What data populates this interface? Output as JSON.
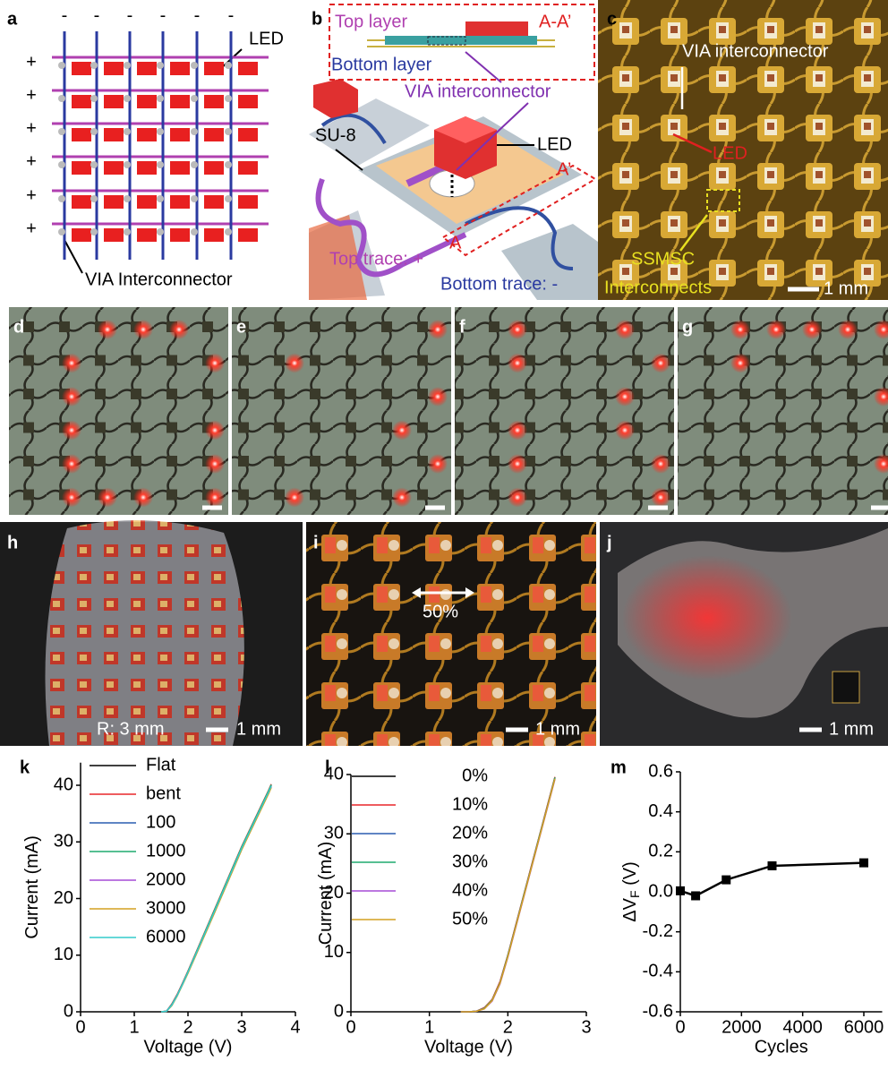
{
  "a": {
    "label": "a",
    "minus": [
      "-",
      "-",
      "-",
      "-",
      "-",
      "-"
    ],
    "plus": [
      "+",
      "+",
      "+",
      "+",
      "+",
      "+"
    ],
    "led": "LED",
    "via": "VIA Interconnector"
  },
  "b": {
    "label": "b",
    "top_layer": "Top layer",
    "section": "A-A’",
    "bottom_layer": "Bottom layer",
    "via": "VIA interconnector",
    "su8": "SU-8",
    "led": "LED",
    "a_prime": "A’",
    "a": "A",
    "top_trace": "Top trace: +",
    "bottom_trace": "Bottom trace: -"
  },
  "c": {
    "label": "c",
    "via": "VIA interconnector",
    "led": "LED",
    "ssmsc": "SSMSC",
    "interconnects": "Interconnects",
    "scale": "1 mm"
  },
  "d": {
    "label": "d"
  },
  "e": {
    "label": "e"
  },
  "f": {
    "label": "f"
  },
  "g": {
    "label": "g"
  },
  "h": {
    "label": "h",
    "radius": "R: 3 mm",
    "scale": "1 mm"
  },
  "i": {
    "label": "i",
    "strain": "50%",
    "scale": "1 mm"
  },
  "j": {
    "label": "j",
    "scale": "1 mm"
  },
  "chart_data": [
    {
      "type": "line",
      "panel_label": "k",
      "xlabel": "Voltage (V)",
      "ylabel": "Current (mA)",
      "x": [
        1.5,
        1.6,
        1.7,
        1.8,
        1.9,
        2.0,
        2.5,
        3.0,
        3.5,
        3.55
      ],
      "series": [
        {
          "name": "Flat",
          "color": "#000000",
          "values": [
            0,
            0.1,
            1.3,
            3.0,
            5.0,
            7.1,
            18.0,
            29.0,
            38.9,
            40.0
          ]
        },
        {
          "name": "bent",
          "color": "#e8262a",
          "values": [
            0,
            0.1,
            1.4,
            3.1,
            5.1,
            7.2,
            18.2,
            29.2,
            39.1,
            40.2
          ]
        },
        {
          "name": "100",
          "color": "#2a5db0",
          "values": [
            0,
            0.1,
            1.2,
            2.9,
            4.9,
            7.0,
            17.8,
            28.8,
            38.7,
            39.8
          ]
        },
        {
          "name": "1000",
          "color": "#1eaa6e",
          "values": [
            0,
            0.1,
            1.3,
            3.0,
            5.0,
            7.1,
            18.1,
            29.1,
            39.0,
            40.1
          ]
        },
        {
          "name": "2000",
          "color": "#a64bd6",
          "values": [
            0,
            0.1,
            1.2,
            2.9,
            4.9,
            6.9,
            17.7,
            28.7,
            38.6,
            39.7
          ]
        },
        {
          "name": "3000",
          "color": "#d4a020",
          "values": [
            0,
            0.1,
            1.1,
            2.8,
            4.8,
            6.8,
            17.6,
            28.6,
            38.5,
            39.6
          ]
        },
        {
          "name": "6000",
          "color": "#33cccc",
          "values": [
            0,
            0.1,
            1.2,
            2.9,
            4.9,
            7.0,
            17.9,
            28.9,
            38.8,
            39.9
          ]
        }
      ],
      "xlim": [
        0,
        4
      ],
      "xticks": [
        0,
        1,
        2,
        3,
        4
      ],
      "ylim": [
        0,
        44
      ],
      "yticks": [
        0,
        10,
        20,
        30,
        40
      ],
      "legend": "upper-left"
    },
    {
      "type": "line",
      "panel_label": "l",
      "xlabel": "Voltage (V)",
      "ylabel": "Current (mA)",
      "x": [
        1.4,
        1.5,
        1.6,
        1.7,
        1.8,
        1.9,
        2.0,
        2.1,
        2.2,
        2.3,
        2.4,
        2.5,
        2.6
      ],
      "series": [
        {
          "name": "0%",
          "color": "#000000",
          "values": [
            0,
            0,
            0.1,
            0.6,
            2.0,
            5.0,
            9.5,
            14.5,
            19.5,
            24.5,
            29.5,
            34.5,
            39.5
          ]
        },
        {
          "name": "10%",
          "color": "#e8262a",
          "values": [
            0,
            0,
            0.1,
            0.7,
            2.1,
            5.1,
            9.6,
            14.6,
            19.6,
            24.6,
            29.6,
            34.6,
            39.6
          ]
        },
        {
          "name": "20%",
          "color": "#2a5db0",
          "values": [
            0,
            0,
            0.1,
            0.6,
            1.9,
            4.9,
            9.4,
            14.4,
            19.4,
            24.4,
            29.4,
            34.4,
            39.4
          ]
        },
        {
          "name": "30%",
          "color": "#1eaa6e",
          "values": [
            0,
            0,
            0.1,
            0.6,
            2.0,
            4.9,
            9.5,
            14.4,
            19.5,
            24.4,
            29.5,
            34.4,
            39.5
          ]
        },
        {
          "name": "40%",
          "color": "#a64bd6",
          "values": [
            0,
            0,
            0.1,
            0.5,
            1.8,
            4.7,
            9.2,
            14.2,
            19.2,
            24.2,
            29.2,
            34.2,
            39.2
          ]
        },
        {
          "name": "50%",
          "color": "#d4a020",
          "values": [
            0,
            0,
            0.1,
            0.5,
            1.9,
            4.8,
            9.3,
            14.3,
            19.3,
            24.3,
            29.3,
            34.3,
            39.3
          ]
        }
      ],
      "xlim": [
        0,
        3
      ],
      "xticks": [
        0,
        1,
        2,
        3
      ],
      "ylim": [
        0,
        40
      ],
      "yticks": [
        0,
        10,
        20,
        30,
        40
      ],
      "legend": "upper-left"
    },
    {
      "type": "line",
      "markers": true,
      "panel_label": "m",
      "xlabel": "Cycles",
      "ylabel": "ΔV",
      "ylabel_subscript": "F",
      "ylabel_unit": " (V)",
      "x": [
        0,
        500,
        1500,
        3000,
        6000
      ],
      "series": [
        {
          "color": "#000000",
          "values": [
            0.005,
            -0.02,
            0.06,
            0.13,
            0.145
          ]
        }
      ],
      "xlim": [
        0,
        6600
      ],
      "xticks": [
        0,
        2000,
        4000,
        6000
      ],
      "ylim": [
        -0.6,
        0.6
      ],
      "yticks": [
        -0.6,
        -0.4,
        -0.2,
        {
          "value": 0,
          "label": "0.0"
        },
        0.2,
        0.4,
        0.6
      ]
    }
  ]
}
